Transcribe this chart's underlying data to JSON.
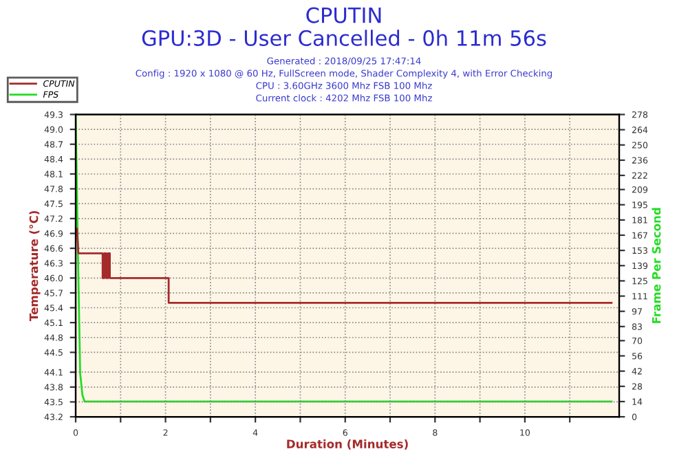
{
  "chart_data": {
    "type": "line",
    "title": "CPUTIN",
    "subtitle": "GPU:3D - User Cancelled - 0h 11m 56s",
    "annotations": [
      "Generated : 2018/09/25 17:47:14",
      "Config : 1920 x 1080 @ 60 Hz, FullScreen mode, Shader Complexity 4, with Error Checking",
      "CPU : 3.60GHz 3600 Mhz FSB 100 Mhz",
      "Current clock : 4202 Mhz FSB 100 Mhz"
    ],
    "xlabel": "Duration (Minutes)",
    "ylabel": "Temperature (°C)",
    "y2label": "Frame Per Second",
    "series": [
      {
        "name": "CPUTIN",
        "color": "#a52a2a",
        "x": [
          0,
          0.03,
          0.06,
          0.6,
          0.6,
          0.64,
          0.64,
          0.68,
          0.68,
          0.72,
          0.72,
          0.76,
          0.76,
          2.07,
          2.07,
          11.93
        ],
        "values": [
          46.9,
          47.0,
          46.5,
          46.5,
          46.0,
          46.0,
          46.5,
          46.5,
          46.0,
          46.0,
          46.5,
          46.5,
          46.0,
          46.0,
          45.5,
          45.5
        ]
      },
      {
        "name": "FPS",
        "color": "#22dd22",
        "axis": "y2",
        "x": [
          0,
          0.05,
          0.1,
          0.15,
          0.2,
          11.93
        ],
        "values": [
          278,
          150,
          40,
          20,
          14,
          14
        ]
      }
    ],
    "xlim": [
      0,
      12.1
    ],
    "xticks": [
      0,
      {
        "value": 1,
        "label": null
      },
      2,
      {
        "value": 3,
        "label": null
      },
      4,
      {
        "value": 5,
        "label": null
      },
      6,
      {
        "value": 7,
        "label": null
      },
      8,
      {
        "value": 9,
        "label": null
      },
      10,
      {
        "value": 11,
        "label": null
      }
    ],
    "ylim": [
      43.2,
      49.3
    ],
    "yticks": [
      43.2,
      43.5,
      43.8,
      44.1,
      44.5,
      44.8,
      45.1,
      45.4,
      45.7,
      {
        "value": 46.0,
        "label": "46.0"
      },
      46.3,
      46.6,
      46.9,
      47.2,
      47.5,
      47.8,
      48.1,
      48.4,
      48.7,
      {
        "value": 49.0,
        "label": "49.0"
      },
      49.3
    ],
    "y2lim": [
      0,
      278
    ],
    "y2ticks": [
      0,
      14,
      28,
      42,
      56,
      70,
      83,
      97,
      111,
      125,
      139,
      153,
      167,
      181,
      195,
      209,
      222,
      236,
      250,
      264,
      278
    ],
    "grid": true,
    "legend": "top left",
    "marker": "none",
    "line_style": "solid"
  }
}
